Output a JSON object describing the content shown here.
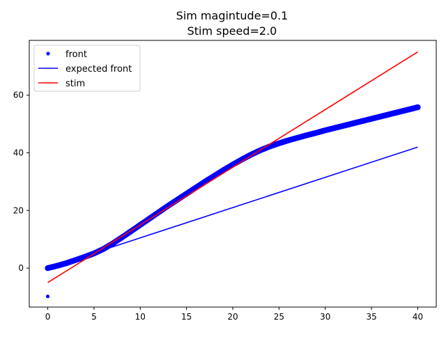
{
  "chart_data": {
    "type": "line",
    "title_lines": [
      "Sim magintude=0.1",
      "Stim speed=2.0"
    ],
    "xlabel": "",
    "ylabel": "",
    "xlim": [
      -2,
      42
    ],
    "ylim": [
      -13.5,
      79
    ],
    "xticks": [
      0,
      5,
      10,
      15,
      20,
      25,
      30,
      35,
      40
    ],
    "yticks": [
      0,
      20,
      40,
      60
    ],
    "grid": false,
    "legend_position": "top-left",
    "series": [
      {
        "name": "front",
        "kind": "scatter",
        "color": "#0000ff",
        "points": [
          [
            0,
            -9.8
          ],
          [
            0,
            0
          ],
          [
            1,
            0.8
          ],
          [
            2,
            1.7
          ],
          [
            3,
            2.8
          ],
          [
            4,
            3.9
          ],
          [
            5,
            5.1
          ],
          [
            6,
            6.6
          ],
          [
            7,
            8.5
          ],
          [
            8,
            10.6
          ],
          [
            9,
            12.8
          ],
          [
            10,
            15.0
          ],
          [
            11,
            17.2
          ],
          [
            12,
            19.4
          ],
          [
            13,
            21.6
          ],
          [
            14,
            23.7
          ],
          [
            15,
            25.8
          ],
          [
            16,
            27.9
          ],
          [
            17,
            30.0
          ],
          [
            18,
            32.0
          ],
          [
            19,
            34.0
          ],
          [
            20,
            35.9
          ],
          [
            21,
            37.7
          ],
          [
            22,
            39.4
          ],
          [
            23,
            40.9
          ],
          [
            24,
            42.2
          ],
          [
            25,
            43.3
          ],
          [
            26,
            44.3
          ],
          [
            27,
            45.2
          ],
          [
            28,
            46.1
          ],
          [
            29,
            46.9
          ],
          [
            30,
            47.8
          ],
          [
            31,
            48.6
          ],
          [
            32,
            49.4
          ],
          [
            33,
            50.2
          ],
          [
            34,
            51.0
          ],
          [
            35,
            51.8
          ],
          [
            36,
            52.6
          ],
          [
            37,
            53.4
          ],
          [
            38,
            54.2
          ],
          [
            39,
            55.0
          ],
          [
            40,
            55.8
          ]
        ]
      },
      {
        "name": "expected front",
        "kind": "line",
        "color": "#0000ff",
        "x": [
          0,
          40
        ],
        "y": [
          0,
          42
        ]
      },
      {
        "name": "stim",
        "kind": "line",
        "color": "#ff0000",
        "x": [
          0,
          40
        ],
        "y": [
          -5,
          75
        ]
      }
    ]
  }
}
